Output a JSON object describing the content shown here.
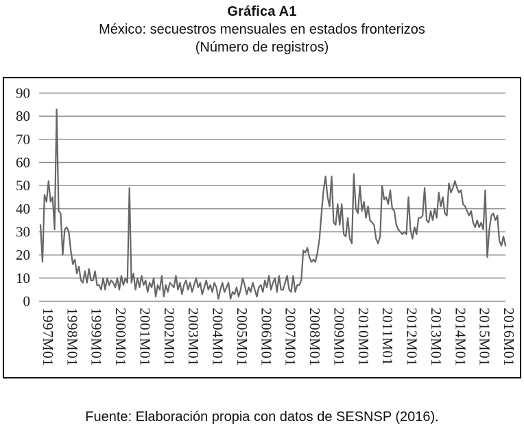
{
  "header": {
    "title": "Gráfica A1",
    "subtitle": "México: secuestros mensuales en estados fronterizos",
    "unit_note": "(Número de registros)"
  },
  "footer": {
    "source": "Fuente: Elaboración propia con datos de SESNSP (2016)."
  },
  "chart_data": {
    "type": "line",
    "title": "México: secuestros mensuales en estados fronterizos (Número de registros)",
    "x_start": "1997M01",
    "x_end": "2016M03",
    "x_frequency": "monthly",
    "x_tick_labels": [
      "1997M01",
      "1998M01",
      "1999M01",
      "2000M01",
      "2001M01",
      "2002M01",
      "2003M01",
      "2004M01",
      "2005M01",
      "2006M01",
      "2007M01",
      "2008M01",
      "2009M01",
      "2010M01",
      "2011M01",
      "2012M01",
      "2013M01",
      "2014M01",
      "2015M01",
      "2016M01"
    ],
    "x_ticks_every_n_points": 12,
    "ylim": [
      0,
      90
    ],
    "y_ticks": [
      0,
      10,
      20,
      30,
      40,
      50,
      60,
      70,
      80,
      90
    ],
    "grid": "horizontal",
    "legend": "none",
    "line_color": "#666666",
    "grid_color": "#8a8a8a",
    "border_color": "#111111",
    "series": [
      {
        "name": "Secuestros mensuales en estados fronterizos",
        "values": [
          33,
          17,
          46,
          43,
          52,
          43,
          45,
          31,
          83,
          39,
          38,
          20,
          31,
          32,
          30,
          22,
          16,
          18,
          12,
          15,
          9,
          8,
          13,
          8,
          14,
          9,
          9,
          13,
          7,
          7,
          5,
          10,
          5,
          10,
          7,
          9,
          8,
          6,
          10,
          5,
          11,
          7,
          10,
          8,
          49,
          8,
          12,
          5,
          10,
          6,
          11,
          7,
          9,
          4,
          8,
          6,
          10,
          2,
          7,
          5,
          11,
          2,
          7,
          4,
          8,
          7,
          6,
          11,
          5,
          8,
          3,
          7,
          9,
          5,
          8,
          4,
          7,
          10,
          6,
          8,
          3,
          6,
          9,
          5,
          7,
          4,
          8,
          6,
          1,
          5,
          8,
          4,
          6,
          8,
          1,
          4,
          3,
          6,
          2,
          5,
          10,
          7,
          3,
          6,
          4,
          8,
          5,
          2,
          6,
          7,
          4,
          9,
          6,
          11,
          5,
          8,
          10,
          4,
          11,
          5,
          5,
          8,
          11,
          5,
          4,
          11,
          4,
          7,
          7,
          9,
          22,
          21,
          23,
          19,
          17,
          18,
          17,
          21,
          27,
          38,
          48,
          54,
          45,
          41,
          54,
          34,
          33,
          42,
          33,
          42,
          29,
          28,
          36,
          27,
          25,
          55,
          40,
          38,
          50,
          39,
          43,
          36,
          41,
          35,
          34,
          33,
          27,
          25,
          28,
          50,
          44,
          45,
          42,
          48,
          40,
          39,
          33,
          31,
          30,
          29,
          30,
          29,
          45,
          31,
          27,
          32,
          29,
          36,
          36,
          37,
          49,
          35,
          34,
          39,
          35,
          40,
          36,
          47,
          41,
          45,
          38,
          37,
          51,
          47,
          49,
          52,
          49,
          47,
          48,
          42,
          41,
          39,
          37,
          39,
          34,
          32,
          35,
          32,
          34,
          31,
          48,
          19,
          31,
          37,
          38,
          35,
          37,
          26,
          24,
          28,
          24
        ]
      }
    ]
  }
}
